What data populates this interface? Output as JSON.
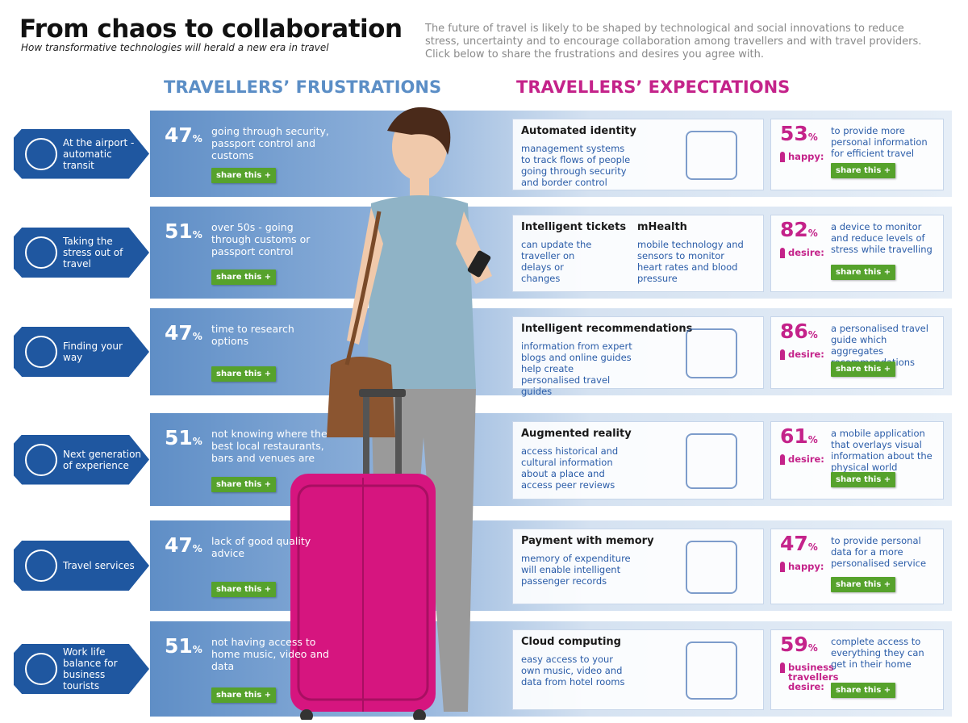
{
  "header": {
    "title": "From chaos to collaboration",
    "subtitle": "How transformative technologies will herald a new era in travel",
    "intro": "The future of travel is likely to be shaped by technological and social innovations to reduce stress, uncertainty and to encourage collaboration among travellers and with travel providers. Click below to share the frustrations and desires you agree with."
  },
  "sections": {
    "frustrations": "TRAVELLERS’ FRUSTRATIONS",
    "expectations": "TRAVELLERS’ EXPECTATIONS"
  },
  "percent_sign": "%",
  "share_label": "share this +",
  "rows": [
    {
      "label": "At the airport - automatic transit",
      "frustration": {
        "stat": "47",
        "text": "going through security, passport control and customs"
      },
      "expectation": {
        "items": [
          {
            "title": "Automated identity",
            "text": "management systems to track flows of people going through security and border control"
          }
        ],
        "stat": "53",
        "sentiment": "happy:",
        "text": "to provide more personal information for efficient travel"
      }
    },
    {
      "label": "Taking the stress out of travel",
      "frustration": {
        "stat": "51",
        "text": "over 50s - going through customs or passport control"
      },
      "expectation": {
        "items": [
          {
            "title": "Intelligent tickets",
            "text": "can update the traveller on delays or changes"
          },
          {
            "title": "mHealth",
            "text": "mobile technology and sensors to monitor heart rates and blood pressure"
          }
        ],
        "stat": "82",
        "sentiment": "desire:",
        "text": "a device to monitor and reduce levels of stress while travelling"
      }
    },
    {
      "label": "Finding your way",
      "frustration": {
        "stat": "47",
        "text": "time to research options"
      },
      "expectation": {
        "items": [
          {
            "title": "Intelligent recommendations",
            "text": "information from expert blogs and online guides help create personalised travel guides"
          }
        ],
        "stat": "86",
        "sentiment": "desire:",
        "text": "a personalised travel guide which aggregates recommendations"
      }
    },
    {
      "label": "Next generation of experience",
      "frustration": {
        "stat": "51",
        "text": "not knowing where the best local restaurants, bars and venues are"
      },
      "expectation": {
        "items": [
          {
            "title": "Augmented reality",
            "text": "access historical and cultural information about a place and access peer reviews"
          }
        ],
        "stat": "61",
        "sentiment": "desire:",
        "text": "a mobile application that overlays visual information about the physical world"
      }
    },
    {
      "label": "Travel services",
      "frustration": {
        "stat": "47",
        "text": "lack of good quality advice"
      },
      "expectation": {
        "items": [
          {
            "title": "Payment with memory",
            "text": "memory of expenditure will enable intelligent passenger records"
          }
        ],
        "stat": "47",
        "sentiment": "happy:",
        "text": "to provide personal data for a more personalised service"
      }
    },
    {
      "label": "Work life balance for business tourists",
      "frustration": {
        "stat": "51",
        "text": "not having access to home music, video and data"
      },
      "expectation": {
        "items": [
          {
            "title": "Cloud computing",
            "text": "easy access to your own music, video and data from hotel rooms"
          }
        ],
        "stat": "59",
        "sentiment": "business travellers desire:",
        "text": "complete access to everything they can get in their home"
      }
    }
  ]
}
